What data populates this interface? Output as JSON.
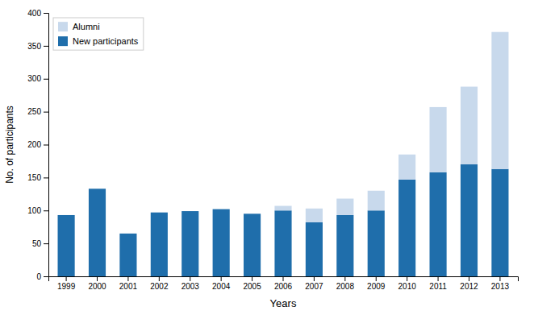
{
  "chart_data": {
    "type": "bar",
    "stacked": true,
    "xlabel": "Years",
    "ylabel": "No. of participants",
    "categories": [
      "1999",
      "2000",
      "2001",
      "2002",
      "2003",
      "2004",
      "2005",
      "2006",
      "2007",
      "2008",
      "2009",
      "2010",
      "2011",
      "2012",
      "2013"
    ],
    "series": [
      {
        "name": "New participants",
        "color": "#1f6eab",
        "values": [
          93,
          133,
          65,
          97,
          99,
          102,
          95,
          100,
          82,
          93,
          100,
          147,
          158,
          170,
          163
        ]
      },
      {
        "name": "Alumni",
        "color": "#c8d9ec",
        "values": [
          0,
          0,
          0,
          0,
          0,
          0,
          0,
          7,
          21,
          25,
          30,
          38,
          99,
          118,
          208
        ]
      }
    ],
    "ylim": [
      0,
      400
    ],
    "yticks": [
      0,
      50,
      100,
      150,
      200,
      250,
      300,
      350,
      400
    ],
    "grid": false,
    "legend": "upper left"
  }
}
